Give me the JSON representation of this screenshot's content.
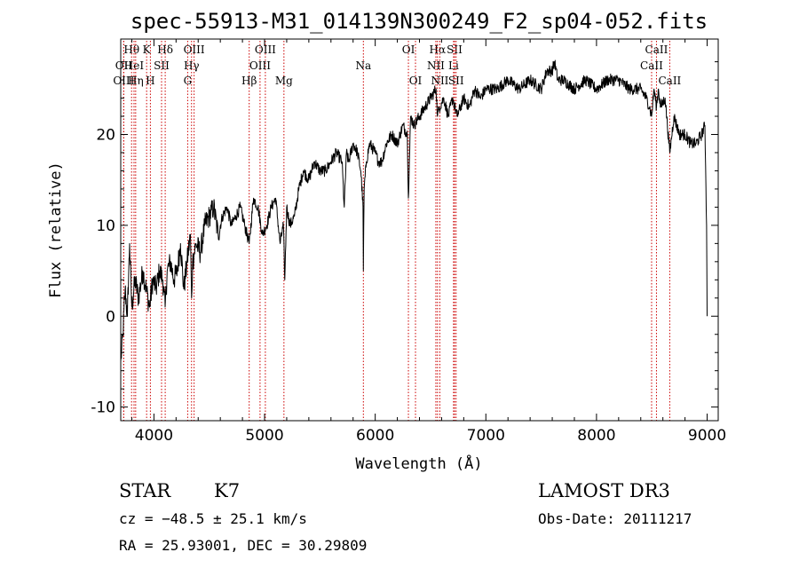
{
  "chart_data": {
    "type": "line",
    "title": "spec-55913-M31_014139N300249_F2_sp04-052.fits",
    "xlabel": "Wavelength (Å)",
    "ylabel": "Flux (relative)",
    "xlim": [
      3700,
      9100
    ],
    "ylim": [
      -11.5,
      30.5
    ],
    "xticks": [
      4000,
      5000,
      6000,
      7000,
      8000,
      9000
    ],
    "yticks": [
      -10,
      0,
      10,
      20
    ],
    "grid": false,
    "series": [
      {
        "name": "flux",
        "x": [
          3700,
          3720,
          3740,
          3760,
          3780,
          3800,
          3830,
          3860,
          3900,
          3930,
          3960,
          3990,
          4020,
          4050,
          4080,
          4101,
          4120,
          4150,
          4180,
          4210,
          4240,
          4270,
          4300,
          4330,
          4340,
          4350,
          4380,
          4420,
          4460,
          4500,
          4540,
          4580,
          4620,
          4660,
          4700,
          4740,
          4780,
          4820,
          4861,
          4900,
          4940,
          4980,
          5020,
          5060,
          5100,
          5140,
          5170,
          5183,
          5200,
          5230,
          5270,
          5310,
          5350,
          5400,
          5450,
          5500,
          5550,
          5600,
          5650,
          5700,
          5720,
          5740,
          5760,
          5800,
          5840,
          5870,
          5890,
          5893,
          5900,
          5920,
          5950,
          6000,
          6030,
          6060,
          6100,
          6150,
          6200,
          6250,
          6290,
          6300,
          6320,
          6350,
          6400,
          6450,
          6500,
          6550,
          6563,
          6580,
          6620,
          6660,
          6700,
          6740,
          6800,
          6850,
          6900,
          6950,
          7000,
          7100,
          7200,
          7300,
          7400,
          7500,
          7550,
          7600,
          7620,
          7650,
          7700,
          7800,
          7900,
          8000,
          8100,
          8200,
          8300,
          8400,
          8450,
          8480,
          8498,
          8520,
          8542,
          8560,
          8580,
          8620,
          8662,
          8700,
          8750,
          8800,
          8850,
          8900,
          8950,
          8980,
          8995,
          9000
        ],
        "values": [
          -5,
          -2,
          3,
          0,
          8,
          1,
          4,
          2,
          5,
          3,
          1,
          4,
          3,
          5,
          4,
          1,
          5,
          6,
          4,
          5,
          8,
          3,
          6,
          9,
          2,
          6,
          8,
          7,
          10,
          11,
          12,
          9,
          11,
          12,
          10,
          11,
          12,
          10,
          8,
          13,
          12,
          9,
          10,
          12,
          13,
          8,
          10,
          4,
          12,
          10,
          11,
          14,
          16,
          15,
          17,
          16,
          16,
          17,
          18,
          17,
          12,
          18,
          17,
          19,
          18,
          16,
          12,
          5,
          14,
          17,
          19,
          18,
          17,
          17,
          19,
          20,
          19,
          21,
          20,
          13,
          22,
          21,
          22,
          23,
          24,
          25,
          22,
          23,
          24,
          22,
          24,
          22,
          24,
          23,
          25,
          24,
          25,
          25,
          26,
          25,
          26,
          25,
          27,
          27,
          28,
          26,
          26,
          25,
          26,
          25,
          26,
          26,
          25,
          25,
          24,
          23,
          22,
          25,
          23,
          25,
          23,
          24,
          18,
          22,
          20,
          20,
          19,
          19,
          20,
          21,
          10,
          0
        ]
      }
    ],
    "line_markers": [
      {
        "label": "Hθ",
        "x": 3798,
        "row": 1
      },
      {
        "label": "OII",
        "x": 3727,
        "row": 2
      },
      {
        "label": "OIII",
        "x": 3727,
        "row": 3
      },
      {
        "label": "K",
        "x": 3934,
        "row": 1
      },
      {
        "label": "HeI",
        "x": 3820,
        "row": 2
      },
      {
        "label": "Hη",
        "x": 3835,
        "row": 3
      },
      {
        "label": "SII",
        "x": 4069,
        "row": 2
      },
      {
        "label": "H",
        "x": 3968,
        "row": 3
      },
      {
        "label": "Hδ",
        "x": 4102,
        "row": 1
      },
      {
        "label": "OIII",
        "x": 4363,
        "row": 1
      },
      {
        "label": "Hγ",
        "x": 4340,
        "row": 2
      },
      {
        "label": "G",
        "x": 4305,
        "row": 3
      },
      {
        "label": "Hβ",
        "x": 4861,
        "row": 3
      },
      {
        "label": "OIII",
        "x": 5007,
        "row": 1
      },
      {
        "label": "OIII",
        "x": 4959,
        "row": 2
      },
      {
        "label": "Mg",
        "x": 5175,
        "row": 3
      },
      {
        "label": "Na",
        "x": 5893,
        "row": 2
      },
      {
        "label": "OI",
        "x": 6300,
        "row": 1
      },
      {
        "label": "OI",
        "x": 6364,
        "row": 3
      },
      {
        "label": "Hα",
        "x": 6563,
        "row": 1
      },
      {
        "label": "SII",
        "x": 6717,
        "row": 1
      },
      {
        "label": "NII",
        "x": 6548,
        "row": 2
      },
      {
        "label": "Li",
        "x": 6708,
        "row": 2
      },
      {
        "label": "NII",
        "x": 6584,
        "row": 3
      },
      {
        "label": "SII",
        "x": 6731,
        "row": 3
      },
      {
        "label": "CaII",
        "x": 8542,
        "row": 1
      },
      {
        "label": "CaII",
        "x": 8498,
        "row": 2
      },
      {
        "label": "CaII",
        "x": 8662,
        "row": 3
      }
    ]
  },
  "info": {
    "object_type": "STAR",
    "subclass": "K7",
    "survey": "LAMOST DR3",
    "cz": "cz = −48.5 ± 25.1 km/s",
    "obs_date": "Obs-Date: 20111217",
    "coords": "RA =  25.93001, DEC =  30.29809"
  },
  "colors": {
    "marker": "#cc0000",
    "line": "#000000"
  }
}
